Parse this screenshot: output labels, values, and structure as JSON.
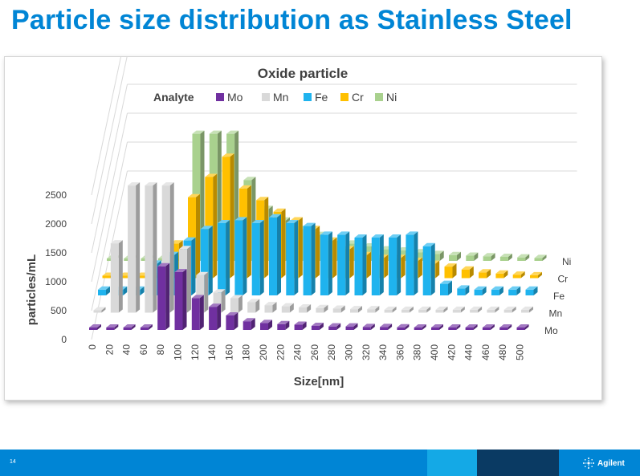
{
  "slide": {
    "title": "Particle size distribution as Stainless Steel",
    "page_number": "14",
    "brand": "Agilent",
    "colors": {
      "title": "#0085d5",
      "footer": "#0085d5",
      "footer_light": "#14a9e6",
      "footer_dark": "#0a3a63"
    }
  },
  "chart_data": {
    "type": "bar",
    "subtype": "3d-column",
    "title": "Oxide particle",
    "legend_title": "Analyte",
    "legend_position": "top",
    "xlabel": "Size[nm]",
    "ylabel": "particles/mL",
    "ylim": [
      0,
      2500
    ],
    "yticks": [
      0,
      500,
      1000,
      1500,
      2000,
      2500
    ],
    "grid": true,
    "categories": [
      "0",
      "20",
      "40",
      "60",
      "80",
      "100",
      "120",
      "140",
      "160",
      "180",
      "200",
      "220",
      "240",
      "260",
      "280",
      "300",
      "320",
      "340",
      "360",
      "380",
      "400",
      "420",
      "440",
      "460",
      "480",
      "500"
    ],
    "series": [
      {
        "name": "Mo",
        "color": "#7030a0",
        "values": [
          5,
          5,
          5,
          5,
          1100,
          1000,
          550,
          400,
          250,
          150,
          120,
          100,
          90,
          70,
          60,
          60,
          50,
          50,
          45,
          40,
          40,
          40,
          40,
          40,
          40,
          40
        ]
      },
      {
        "name": "Mn",
        "color": "#d9d9d9",
        "values": [
          5,
          1200,
          2200,
          2200,
          2200,
          1100,
          650,
          350,
          250,
          180,
          130,
          110,
          90,
          80,
          70,
          60,
          60,
          50,
          50,
          50,
          50,
          50,
          50,
          50,
          50,
          50
        ]
      },
      {
        "name": "Fe",
        "color": "#1fb3ee",
        "values": [
          100,
          100,
          100,
          550,
          700,
          950,
          1150,
          1250,
          1300,
          1250,
          1350,
          1250,
          1200,
          1050,
          1050,
          1000,
          1000,
          1000,
          1050,
          850,
          200,
          120,
          100,
          100,
          100,
          100
        ]
      },
      {
        "name": "Cr",
        "color": "#ffc000",
        "values": [
          40,
          40,
          40,
          40,
          600,
          1400,
          1750,
          2100,
          1550,
          1350,
          1150,
          1000,
          850,
          650,
          500,
          400,
          350,
          350,
          300,
          250,
          200,
          150,
          100,
          80,
          60,
          50
        ]
      },
      {
        "name": "Ni",
        "color": "#a9d18e",
        "values": [
          40,
          40,
          40,
          40,
          40,
          2200,
          2200,
          2200,
          1400,
          900,
          700,
          550,
          450,
          350,
          300,
          250,
          200,
          180,
          150,
          120,
          100,
          90,
          80,
          70,
          60,
          50
        ]
      }
    ]
  }
}
